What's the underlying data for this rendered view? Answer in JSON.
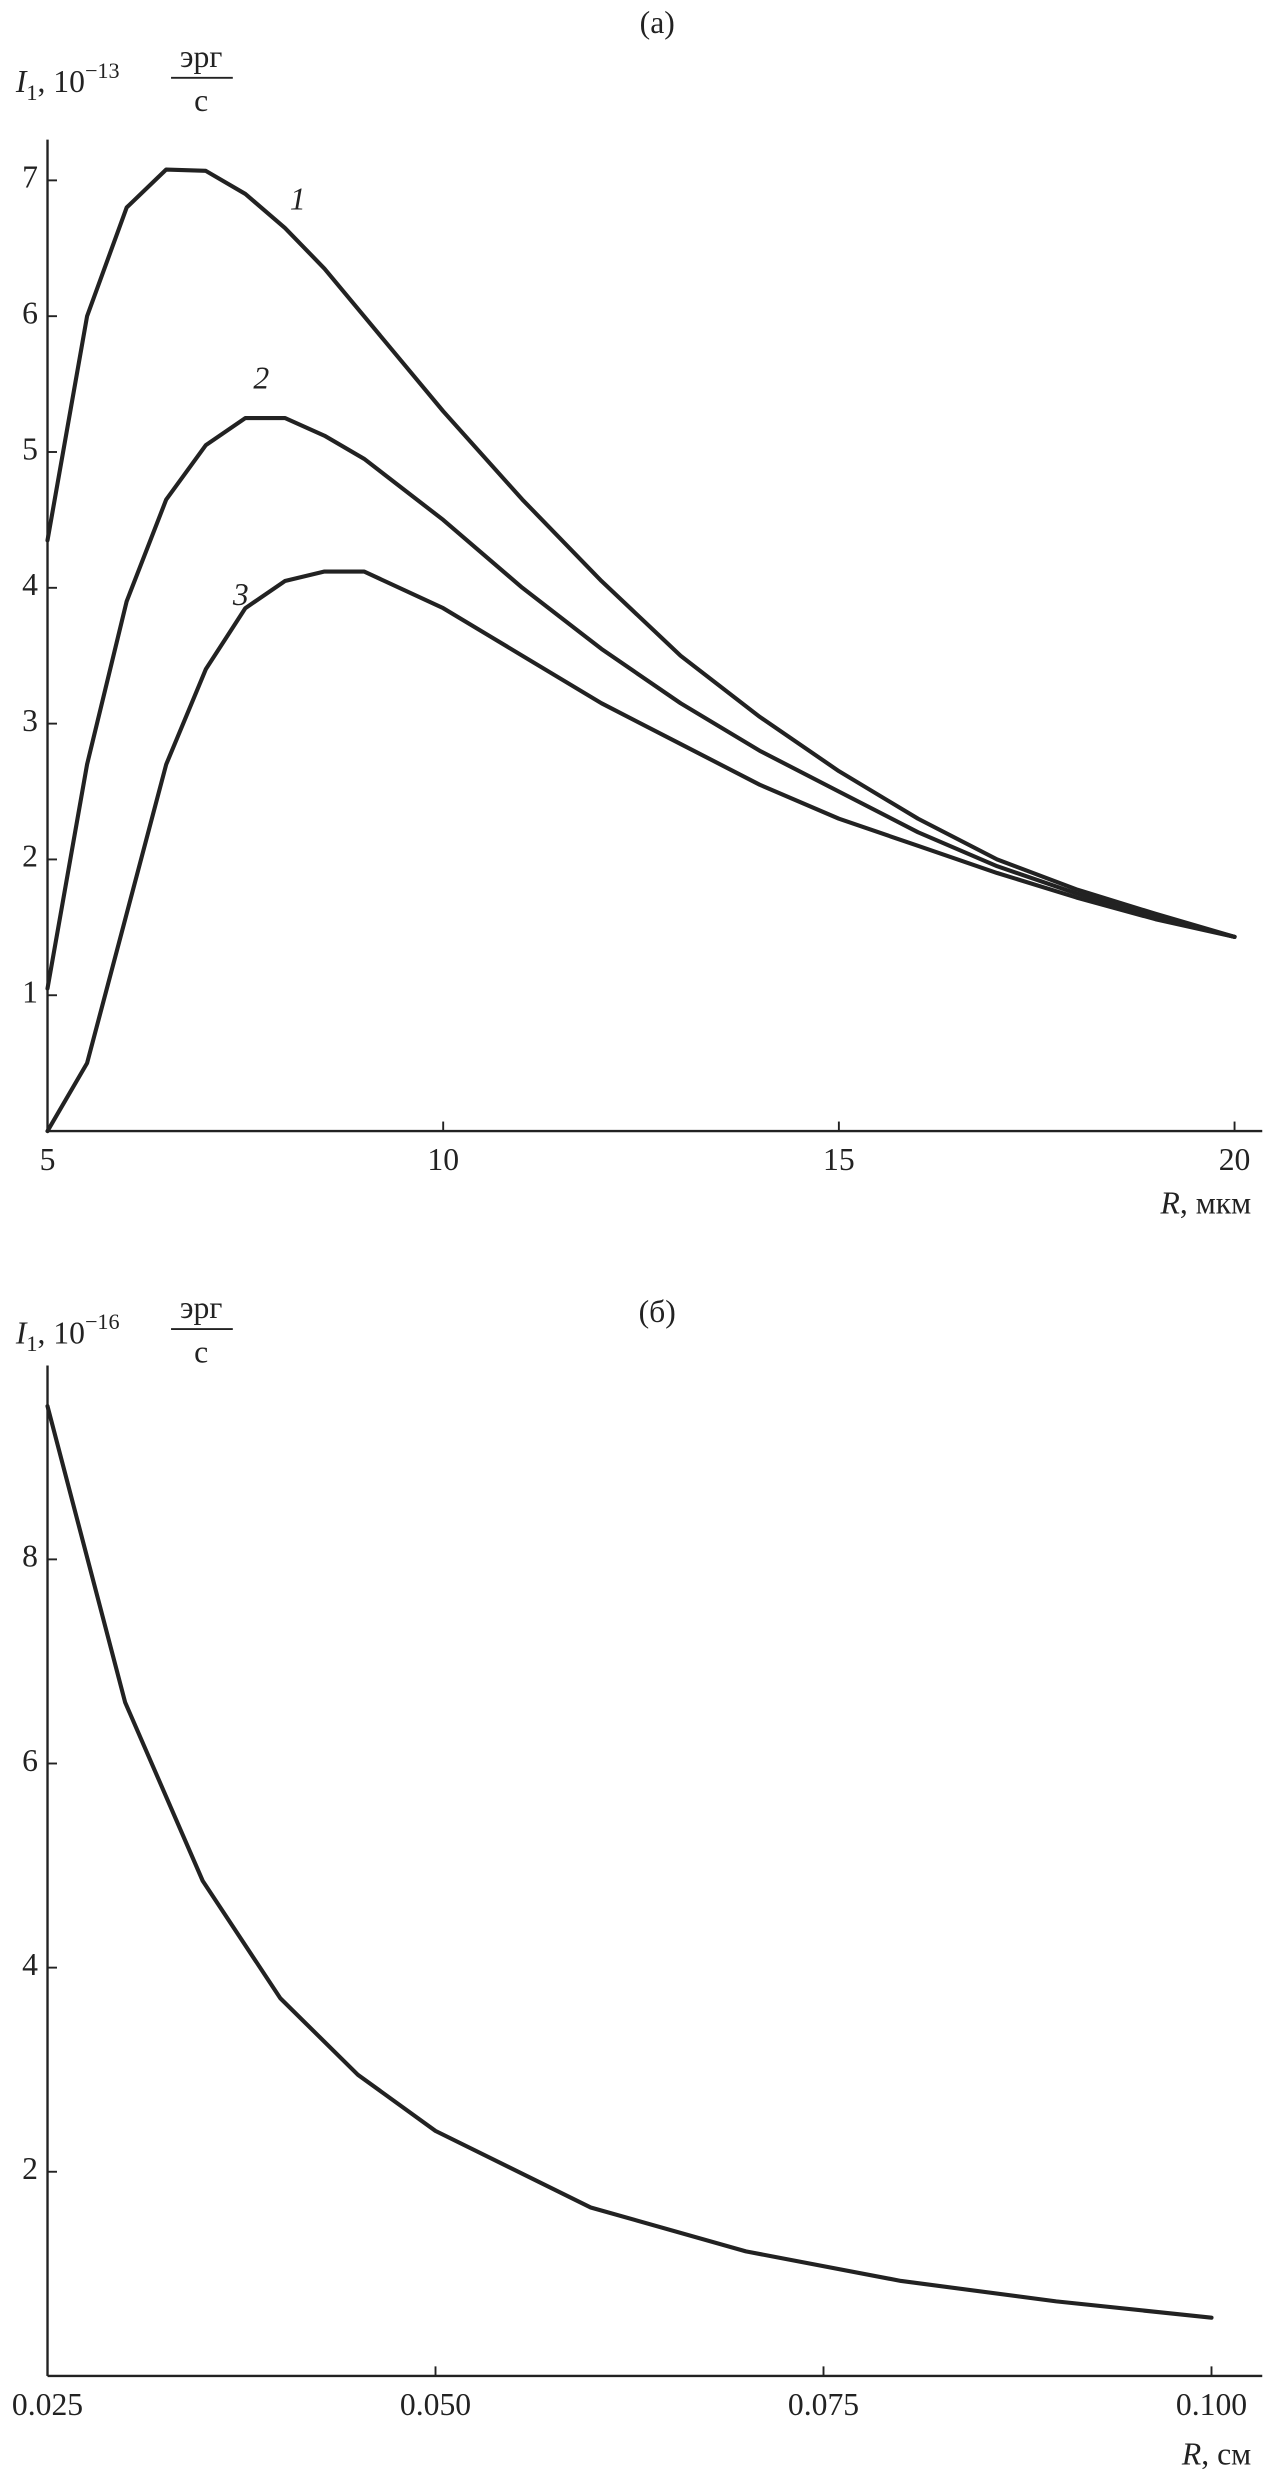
{
  "chart_data": [
    {
      "type": "line",
      "title": "(a)",
      "ylabel": {
        "symbol": "I",
        "subscript": "1",
        "prefix": ", 10",
        "exponent": "−13",
        "numerator": "эрг",
        "denominator": "с"
      },
      "xlabel": {
        "symbol": "R",
        "unit": ", мкм"
      },
      "x": [
        5,
        5.5,
        6,
        6.5,
        7,
        7.5,
        8,
        8.5,
        9,
        10,
        11,
        12,
        13,
        14,
        15,
        16,
        17,
        18,
        19,
        20
      ],
      "series": [
        {
          "name": "1",
          "color": "#222222",
          "values": [
            4.35,
            6.0,
            6.8,
            7.08,
            7.07,
            6.9,
            6.65,
            6.35,
            6.0,
            5.3,
            4.65,
            4.05,
            3.5,
            3.05,
            2.65,
            2.3,
            2.0,
            1.78,
            1.6,
            1.43
          ]
        },
        {
          "name": "2",
          "color": "#222222",
          "values": [
            1.05,
            2.7,
            3.9,
            4.65,
            5.05,
            5.25,
            5.25,
            5.12,
            4.95,
            4.5,
            4.0,
            3.55,
            3.15,
            2.8,
            2.5,
            2.2,
            1.95,
            1.75,
            1.58,
            1.43
          ]
        },
        {
          "name": "3",
          "color": "#222222",
          "values": [
            0.0,
            0.5,
            1.6,
            2.7,
            3.4,
            3.85,
            4.05,
            4.12,
            4.12,
            3.85,
            3.5,
            3.15,
            2.85,
            2.55,
            2.3,
            2.1,
            1.9,
            1.72,
            1.56,
            1.43
          ]
        }
      ],
      "xlim": [
        5,
        20.35
      ],
      "ylim": [
        0,
        7.3
      ],
      "xticks": [
        5,
        10,
        15,
        20
      ],
      "yticks": [
        1,
        2,
        3,
        4,
        5,
        6,
        7
      ]
    },
    {
      "type": "line",
      "title": "(б)",
      "ylabel": {
        "symbol": "I",
        "subscript": "1",
        "prefix": ", 10",
        "exponent": "−16",
        "numerator": "эрг",
        "denominator": "с"
      },
      "xlabel": {
        "symbol": "R",
        "unit": ", см"
      },
      "x": [
        0.025,
        0.03,
        0.035,
        0.04,
        0.045,
        0.05,
        0.06,
        0.07,
        0.08,
        0.09,
        0.1
      ],
      "series": [
        {
          "color": "#222222",
          "values": [
            9.5,
            6.6,
            4.85,
            3.7,
            2.95,
            2.4,
            1.65,
            1.22,
            0.93,
            0.73,
            0.57
          ]
        }
      ],
      "xlim": [
        0.025,
        0.10327
      ],
      "ylim": [
        0,
        9.9
      ],
      "xticks": [
        {
          "value": 0.025,
          "label": "0.025"
        },
        {
          "value": 0.05,
          "label": "0.050"
        },
        {
          "value": 0.075,
          "label": "0.075"
        },
        {
          "value": 0.1,
          "label": "0.100"
        }
      ],
      "yticks": [
        2,
        4,
        6,
        8
      ]
    }
  ]
}
